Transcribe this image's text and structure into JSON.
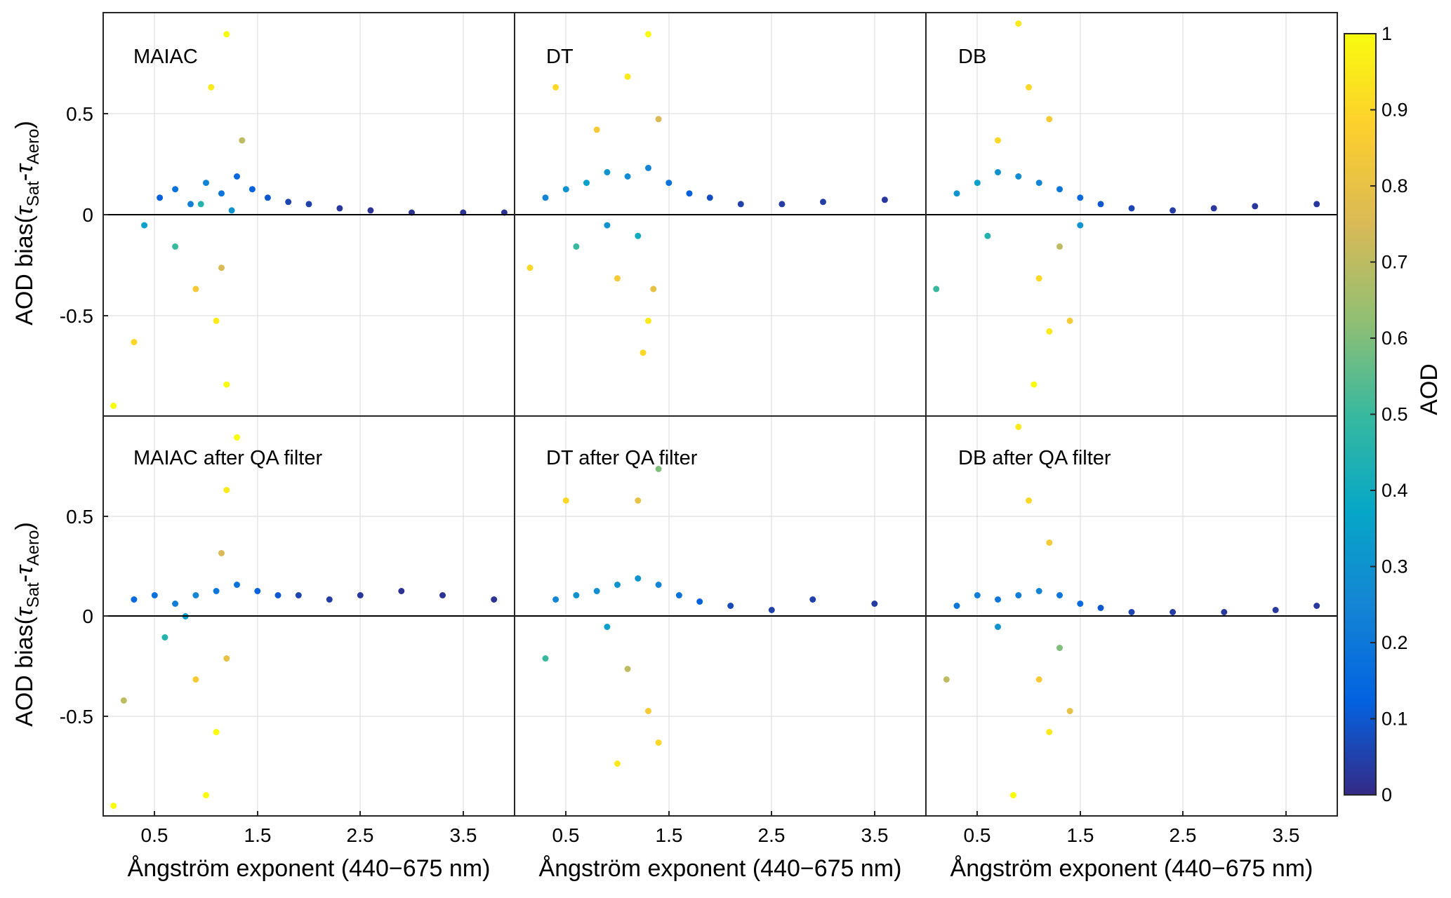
{
  "colorbar": {
    "label": "AOD",
    "range": [
      0,
      1
    ],
    "ticks": [
      "0",
      "0.1",
      "0.2",
      "0.3",
      "0.4",
      "0.5",
      "0.6",
      "0.7",
      "0.8",
      "0.9",
      "1"
    ],
    "colormap": "parula",
    "stops": [
      "#352a87",
      "#0363e1",
      "#1485d4",
      "#06a7c6",
      "#38b99e",
      "#92bf73",
      "#d9ba56",
      "#fcce2e",
      "#f9fb0e"
    ]
  },
  "y_axis": {
    "label_prefix": "AOD bias(",
    "label_tau1": "τ",
    "label_sub1": "Sat",
    "label_mid": "-",
    "label_tau2": "τ",
    "label_sub2": "Aero",
    "label_suffix": ")",
    "tick_labels": [
      "0.5",
      "0",
      "-0.5"
    ]
  },
  "x_axis": {
    "label": "Ångström exponent (440−675 nm)",
    "tick_labels": [
      "0.5",
      "1.5",
      "2.5",
      "3.5"
    ]
  },
  "panels": [
    {
      "label": "MAIAC"
    },
    {
      "label": "DT"
    },
    {
      "label": "DB"
    },
    {
      "label": "MAIAC after QA filter"
    },
    {
      "label": "DT after QA filter"
    },
    {
      "label": "DB after QA filter"
    }
  ],
  "chart_data": [
    {
      "type": "scatter",
      "title": "MAIAC",
      "xlabel": "Ångström exponent (440−675 nm)",
      "ylabel": "AOD bias(τSat-τAero)",
      "xlim": [
        0,
        4
      ],
      "ylim": [
        -1,
        1
      ],
      "grid": true,
      "reference_line_y": 0,
      "color_by": "AOD",
      "series": [
        {
          "points": [
            [
              0.55,
              0.08,
              0.12
            ],
            [
              0.7,
              0.12,
              0.18
            ],
            [
              0.85,
              0.05,
              0.22
            ],
            [
              1.0,
              0.15,
              0.25
            ],
            [
              1.15,
              0.1,
              0.2
            ],
            [
              1.3,
              0.18,
              0.15
            ],
            [
              1.45,
              0.12,
              0.12
            ],
            [
              1.6,
              0.08,
              0.1
            ],
            [
              1.8,
              0.06,
              0.06
            ],
            [
              2.0,
              0.05,
              0.05
            ],
            [
              2.3,
              0.03,
              0.03
            ],
            [
              2.6,
              0.02,
              0.02
            ],
            [
              3.0,
              0.01,
              0.02
            ],
            [
              3.5,
              0.01,
              0.02
            ],
            [
              3.9,
              0.01,
              0.02
            ],
            [
              0.4,
              -0.05,
              0.35
            ],
            [
              0.7,
              -0.15,
              0.5
            ],
            [
              0.9,
              -0.35,
              0.85
            ],
            [
              1.1,
              -0.5,
              0.95
            ],
            [
              1.2,
              -0.8,
              1.0
            ],
            [
              1.05,
              0.6,
              0.95
            ],
            [
              1.2,
              0.85,
              1.0
            ],
            [
              1.35,
              0.35,
              0.7
            ],
            [
              0.3,
              -0.6,
              0.9
            ],
            [
              0.1,
              -0.9,
              1.0
            ],
            [
              1.15,
              -0.25,
              0.75
            ],
            [
              0.95,
              0.05,
              0.45
            ],
            [
              1.25,
              0.02,
              0.3
            ]
          ]
        }
      ]
    },
    {
      "type": "scatter",
      "title": "DT",
      "xlabel": "Ångström exponent (440−675 nm)",
      "ylabel": "AOD bias(τSat-τAero)",
      "xlim": [
        0,
        4
      ],
      "ylim": [
        -1,
        1
      ],
      "grid": true,
      "reference_line_y": 0,
      "color_by": "AOD",
      "series": [
        {
          "points": [
            [
              0.3,
              0.08,
              0.25
            ],
            [
              0.5,
              0.12,
              0.3
            ],
            [
              0.7,
              0.15,
              0.35
            ],
            [
              0.9,
              0.2,
              0.3
            ],
            [
              1.1,
              0.18,
              0.28
            ],
            [
              1.3,
              0.22,
              0.25
            ],
            [
              1.5,
              0.15,
              0.18
            ],
            [
              1.7,
              0.1,
              0.12
            ],
            [
              1.9,
              0.08,
              0.08
            ],
            [
              2.2,
              0.05,
              0.05
            ],
            [
              2.6,
              0.05,
              0.04
            ],
            [
              3.0,
              0.06,
              0.04
            ],
            [
              3.6,
              0.07,
              0.03
            ],
            [
              0.4,
              0.6,
              0.9
            ],
            [
              0.8,
              0.4,
              0.85
            ],
            [
              1.1,
              0.65,
              0.95
            ],
            [
              1.3,
              0.85,
              1.0
            ],
            [
              1.4,
              0.45,
              0.75
            ],
            [
              1.0,
              -0.3,
              0.85
            ],
            [
              1.3,
              -0.5,
              0.95
            ],
            [
              1.25,
              -0.65,
              0.9
            ],
            [
              0.6,
              -0.15,
              0.5
            ],
            [
              1.2,
              -0.1,
              0.4
            ],
            [
              0.15,
              -0.25,
              0.9
            ],
            [
              1.35,
              -0.35,
              0.8
            ],
            [
              0.9,
              -0.05,
              0.3
            ]
          ]
        }
      ]
    },
    {
      "type": "scatter",
      "title": "DB",
      "xlabel": "Ångström exponent (440−675 nm)",
      "ylabel": "AOD bias(τSat-τAero)",
      "xlim": [
        0,
        4
      ],
      "ylim": [
        -1,
        1
      ],
      "grid": true,
      "reference_line_y": 0,
      "color_by": "AOD",
      "series": [
        {
          "points": [
            [
              0.3,
              0.1,
              0.3
            ],
            [
              0.5,
              0.15,
              0.35
            ],
            [
              0.7,
              0.2,
              0.3
            ],
            [
              0.9,
              0.18,
              0.28
            ],
            [
              1.1,
              0.15,
              0.25
            ],
            [
              1.3,
              0.12,
              0.2
            ],
            [
              1.5,
              0.08,
              0.15
            ],
            [
              1.7,
              0.05,
              0.1
            ],
            [
              2.0,
              0.03,
              0.06
            ],
            [
              2.4,
              0.02,
              0.04
            ],
            [
              2.8,
              0.03,
              0.03
            ],
            [
              3.2,
              0.04,
              0.03
            ],
            [
              3.8,
              0.05,
              0.03
            ],
            [
              0.9,
              0.9,
              0.95
            ],
            [
              1.0,
              0.6,
              0.9
            ],
            [
              1.2,
              0.45,
              0.85
            ],
            [
              1.1,
              -0.3,
              0.9
            ],
            [
              1.2,
              -0.55,
              0.95
            ],
            [
              1.05,
              -0.8,
              1.0
            ],
            [
              1.4,
              -0.5,
              0.85
            ],
            [
              0.6,
              -0.1,
              0.45
            ],
            [
              1.3,
              -0.15,
              0.7
            ],
            [
              0.1,
              -0.35,
              0.5
            ],
            [
              0.7,
              0.35,
              0.9
            ],
            [
              1.5,
              -0.05,
              0.3
            ]
          ]
        }
      ]
    },
    {
      "type": "scatter",
      "title": "MAIAC after QA filter",
      "xlabel": "Ångström exponent (440−675 nm)",
      "ylabel": "AOD bias(τSat-τAero)",
      "xlim": [
        0,
        4
      ],
      "ylim": [
        -1,
        1
      ],
      "grid": true,
      "reference_line_y": 0,
      "color_by": "AOD",
      "series": [
        {
          "points": [
            [
              0.3,
              0.08,
              0.15
            ],
            [
              0.5,
              0.1,
              0.18
            ],
            [
              0.7,
              0.06,
              0.22
            ],
            [
              0.9,
              0.1,
              0.25
            ],
            [
              1.1,
              0.12,
              0.2
            ],
            [
              1.3,
              0.15,
              0.18
            ],
            [
              1.5,
              0.12,
              0.12
            ],
            [
              1.7,
              0.1,
              0.1
            ],
            [
              1.9,
              0.1,
              0.06
            ],
            [
              2.2,
              0.08,
              0.04
            ],
            [
              2.5,
              0.1,
              0.03
            ],
            [
              2.9,
              0.12,
              0.02
            ],
            [
              3.3,
              0.1,
              0.02
            ],
            [
              3.8,
              0.08,
              0.02
            ],
            [
              0.6,
              -0.1,
              0.45
            ],
            [
              0.9,
              -0.3,
              0.85
            ],
            [
              1.1,
              -0.55,
              1.0
            ],
            [
              1.0,
              -0.85,
              1.0
            ],
            [
              1.2,
              0.6,
              0.95
            ],
            [
              1.3,
              0.85,
              1.0
            ],
            [
              1.15,
              0.3,
              0.75
            ],
            [
              0.2,
              -0.4,
              0.7
            ],
            [
              0.1,
              -0.9,
              1.0
            ],
            [
              1.2,
              -0.2,
              0.8
            ],
            [
              0.8,
              0.0,
              0.35
            ]
          ]
        }
      ]
    },
    {
      "type": "scatter",
      "title": "DT after QA filter",
      "xlabel": "Ångström exponent (440−675 nm)",
      "ylabel": "AOD bias(τSat-τAero)",
      "xlim": [
        0,
        4
      ],
      "ylim": [
        -1,
        1
      ],
      "grid": true,
      "reference_line_y": 0,
      "color_by": "AOD",
      "series": [
        {
          "points": [
            [
              0.4,
              0.08,
              0.25
            ],
            [
              0.6,
              0.1,
              0.3
            ],
            [
              0.8,
              0.12,
              0.28
            ],
            [
              1.0,
              0.15,
              0.3
            ],
            [
              1.2,
              0.18,
              0.3
            ],
            [
              1.4,
              0.15,
              0.25
            ],
            [
              1.6,
              0.1,
              0.18
            ],
            [
              1.8,
              0.07,
              0.12
            ],
            [
              2.1,
              0.05,
              0.07
            ],
            [
              2.5,
              0.03,
              0.05
            ],
            [
              2.9,
              0.08,
              0.05
            ],
            [
              3.5,
              0.06,
              0.04
            ],
            [
              1.2,
              0.55,
              0.8
            ],
            [
              1.4,
              0.7,
              0.6
            ],
            [
              0.5,
              0.55,
              0.9
            ],
            [
              1.1,
              -0.25,
              0.7
            ],
            [
              1.3,
              -0.45,
              0.85
            ],
            [
              1.0,
              -0.7,
              0.95
            ],
            [
              1.4,
              -0.6,
              0.9
            ],
            [
              0.3,
              -0.2,
              0.5
            ],
            [
              0.9,
              -0.05,
              0.35
            ]
          ]
        }
      ]
    },
    {
      "type": "scatter",
      "title": "DB after QA filter",
      "xlabel": "Ångström exponent (440−675 nm)",
      "ylabel": "AOD bias(τSat-τAero)",
      "xlim": [
        0,
        4
      ],
      "ylim": [
        -1,
        1
      ],
      "grid": true,
      "reference_line_y": 0,
      "color_by": "AOD",
      "series": [
        {
          "points": [
            [
              0.3,
              0.05,
              0.2
            ],
            [
              0.5,
              0.1,
              0.22
            ],
            [
              0.7,
              0.08,
              0.2
            ],
            [
              0.9,
              0.1,
              0.22
            ],
            [
              1.1,
              0.12,
              0.25
            ],
            [
              1.3,
              0.1,
              0.2
            ],
            [
              1.5,
              0.06,
              0.15
            ],
            [
              1.7,
              0.04,
              0.1
            ],
            [
              2.0,
              0.02,
              0.06
            ],
            [
              2.4,
              0.02,
              0.04
            ],
            [
              2.9,
              0.02,
              0.03
            ],
            [
              3.4,
              0.03,
              0.03
            ],
            [
              3.8,
              0.05,
              0.03
            ],
            [
              0.9,
              0.9,
              0.95
            ],
            [
              1.0,
              0.55,
              0.9
            ],
            [
              1.2,
              0.35,
              0.85
            ],
            [
              1.1,
              -0.3,
              0.85
            ],
            [
              1.2,
              -0.55,
              0.95
            ],
            [
              0.85,
              -0.85,
              1.0
            ],
            [
              1.4,
              -0.45,
              0.8
            ],
            [
              0.2,
              -0.3,
              0.7
            ],
            [
              1.3,
              -0.15,
              0.6
            ],
            [
              0.7,
              -0.05,
              0.3
            ]
          ]
        }
      ]
    }
  ]
}
